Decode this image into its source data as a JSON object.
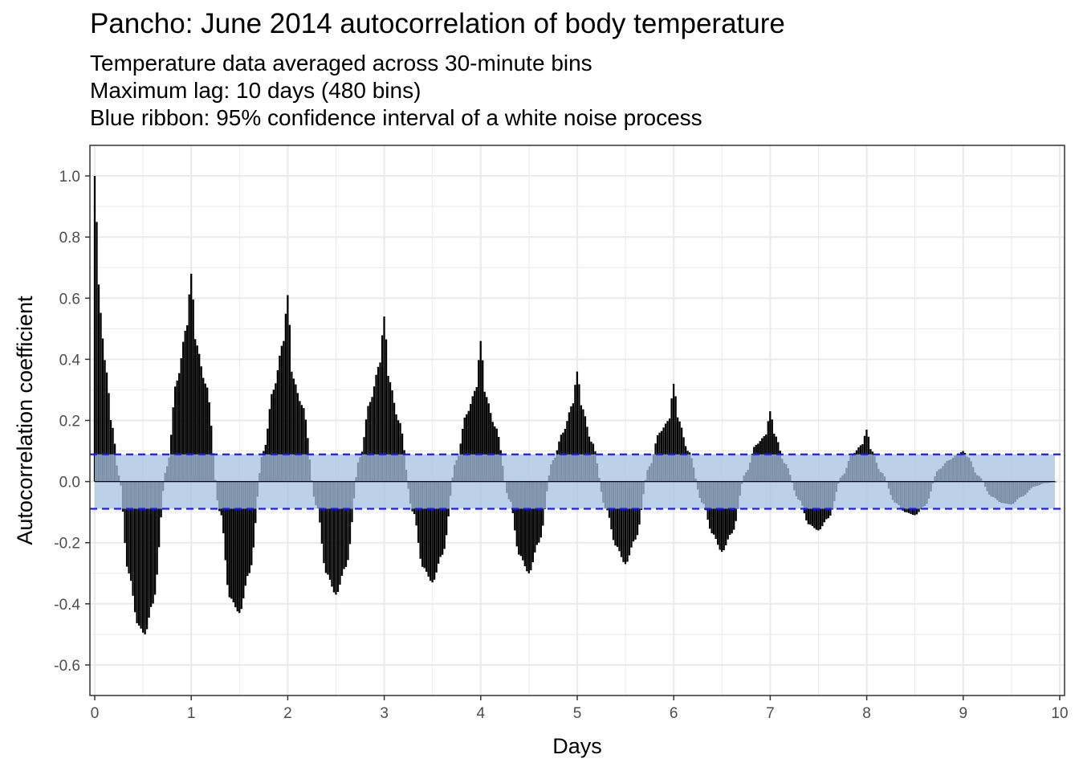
{
  "chart_data": {
    "type": "bar",
    "title": "Pancho: June 2014 autocorrelation of body temperature",
    "subtitle_lines": [
      "Temperature data averaged across 30-minute bins",
      "Maximum lag: 10 days (480 bins)",
      "Blue ribbon: 95% confidence interval of a white noise process"
    ],
    "xlabel": "Days",
    "ylabel": "Autocorrelation coefficient",
    "xlim": [
      -0.05,
      10.05
    ],
    "ylim": [
      -0.7,
      1.1
    ],
    "x_ticks": [
      "0",
      "1",
      "2",
      "3",
      "4",
      "5",
      "6",
      "7",
      "8",
      "9",
      "10"
    ],
    "y_ticks": [
      "1.0",
      "0.8",
      "0.6",
      "0.4",
      "0.2",
      "0.0",
      "-0.2",
      "-0.4",
      "-0.6"
    ],
    "y_tick_values": [
      1.0,
      0.8,
      0.6,
      0.4,
      0.2,
      0.0,
      -0.2,
      -0.4,
      -0.6
    ],
    "bar_spacing_days": 0.02083,
    "confidence_interval": [
      -0.089,
      0.089
    ],
    "anchor_points": {
      "description_days_and_acf": true,
      "x": [
        0,
        0.02,
        0.05,
        0.08,
        0.12,
        0.18,
        0.25,
        0.35,
        0.45,
        0.52,
        0.6,
        0.75,
        0.85,
        0.95,
        1.0,
        1.05,
        1.15,
        1.3,
        1.4,
        1.5,
        1.6,
        1.75,
        1.85,
        1.95,
        2.0,
        2.05,
        2.15,
        2.3,
        2.4,
        2.5,
        2.6,
        2.75,
        2.85,
        2.95,
        3.0,
        3.05,
        3.15,
        3.3,
        3.4,
        3.5,
        3.6,
        3.75,
        3.85,
        3.95,
        4.0,
        4.05,
        4.15,
        4.3,
        4.4,
        4.5,
        4.6,
        4.75,
        4.85,
        4.95,
        5.0,
        5.05,
        5.15,
        5.3,
        5.4,
        5.5,
        5.6,
        5.75,
        5.85,
        5.95,
        6.0,
        6.05,
        6.15,
        6.3,
        6.4,
        6.5,
        6.6,
        6.75,
        6.85,
        6.95,
        7.0,
        7.05,
        7.15,
        7.3,
        7.4,
        7.5,
        7.6,
        7.75,
        7.85,
        7.95,
        8.0,
        8.05,
        8.15,
        8.3,
        8.4,
        8.5,
        8.6,
        8.75,
        8.85,
        8.95,
        9.0,
        9.05,
        9.15,
        9.3,
        9.4,
        9.5,
        9.6,
        9.75,
        9.85,
        9.95
      ],
      "y": [
        1.0,
        0.85,
        0.6,
        0.47,
        0.36,
        0.18,
        0.02,
        -0.3,
        -0.47,
        -0.5,
        -0.4,
        0.05,
        0.33,
        0.5,
        0.68,
        0.45,
        0.32,
        -0.1,
        -0.38,
        -0.43,
        -0.3,
        0.1,
        0.3,
        0.45,
        0.61,
        0.34,
        0.25,
        -0.08,
        -0.3,
        -0.37,
        -0.28,
        0.08,
        0.26,
        0.38,
        0.54,
        0.33,
        0.2,
        -0.1,
        -0.28,
        -0.33,
        -0.24,
        0.07,
        0.22,
        0.3,
        0.46,
        0.28,
        0.18,
        -0.06,
        -0.24,
        -0.3,
        -0.2,
        0.07,
        0.16,
        0.25,
        0.36,
        0.24,
        0.13,
        -0.09,
        -0.21,
        -0.27,
        -0.19,
        0.05,
        0.16,
        0.2,
        0.32,
        0.2,
        0.1,
        -0.07,
        -0.17,
        -0.23,
        -0.17,
        0.03,
        0.12,
        0.15,
        0.23,
        0.15,
        0.06,
        -0.06,
        -0.14,
        -0.16,
        -0.12,
        0.02,
        0.09,
        0.12,
        0.17,
        0.1,
        0.03,
        -0.07,
        -0.1,
        -0.11,
        -0.08,
        0.04,
        0.07,
        0.09,
        0.1,
        0.08,
        0.02,
        -0.05,
        -0.07,
        -0.075,
        -0.05,
        -0.015,
        -0.005,
        -0.002
      ]
    },
    "grid": true,
    "legend": "none"
  },
  "colors": {
    "bars": "#000000",
    "ribbon": "#a6c2e0",
    "ci_line": "#1a1aff",
    "grid": "#ebebeb",
    "panel_border": "#333333"
  }
}
